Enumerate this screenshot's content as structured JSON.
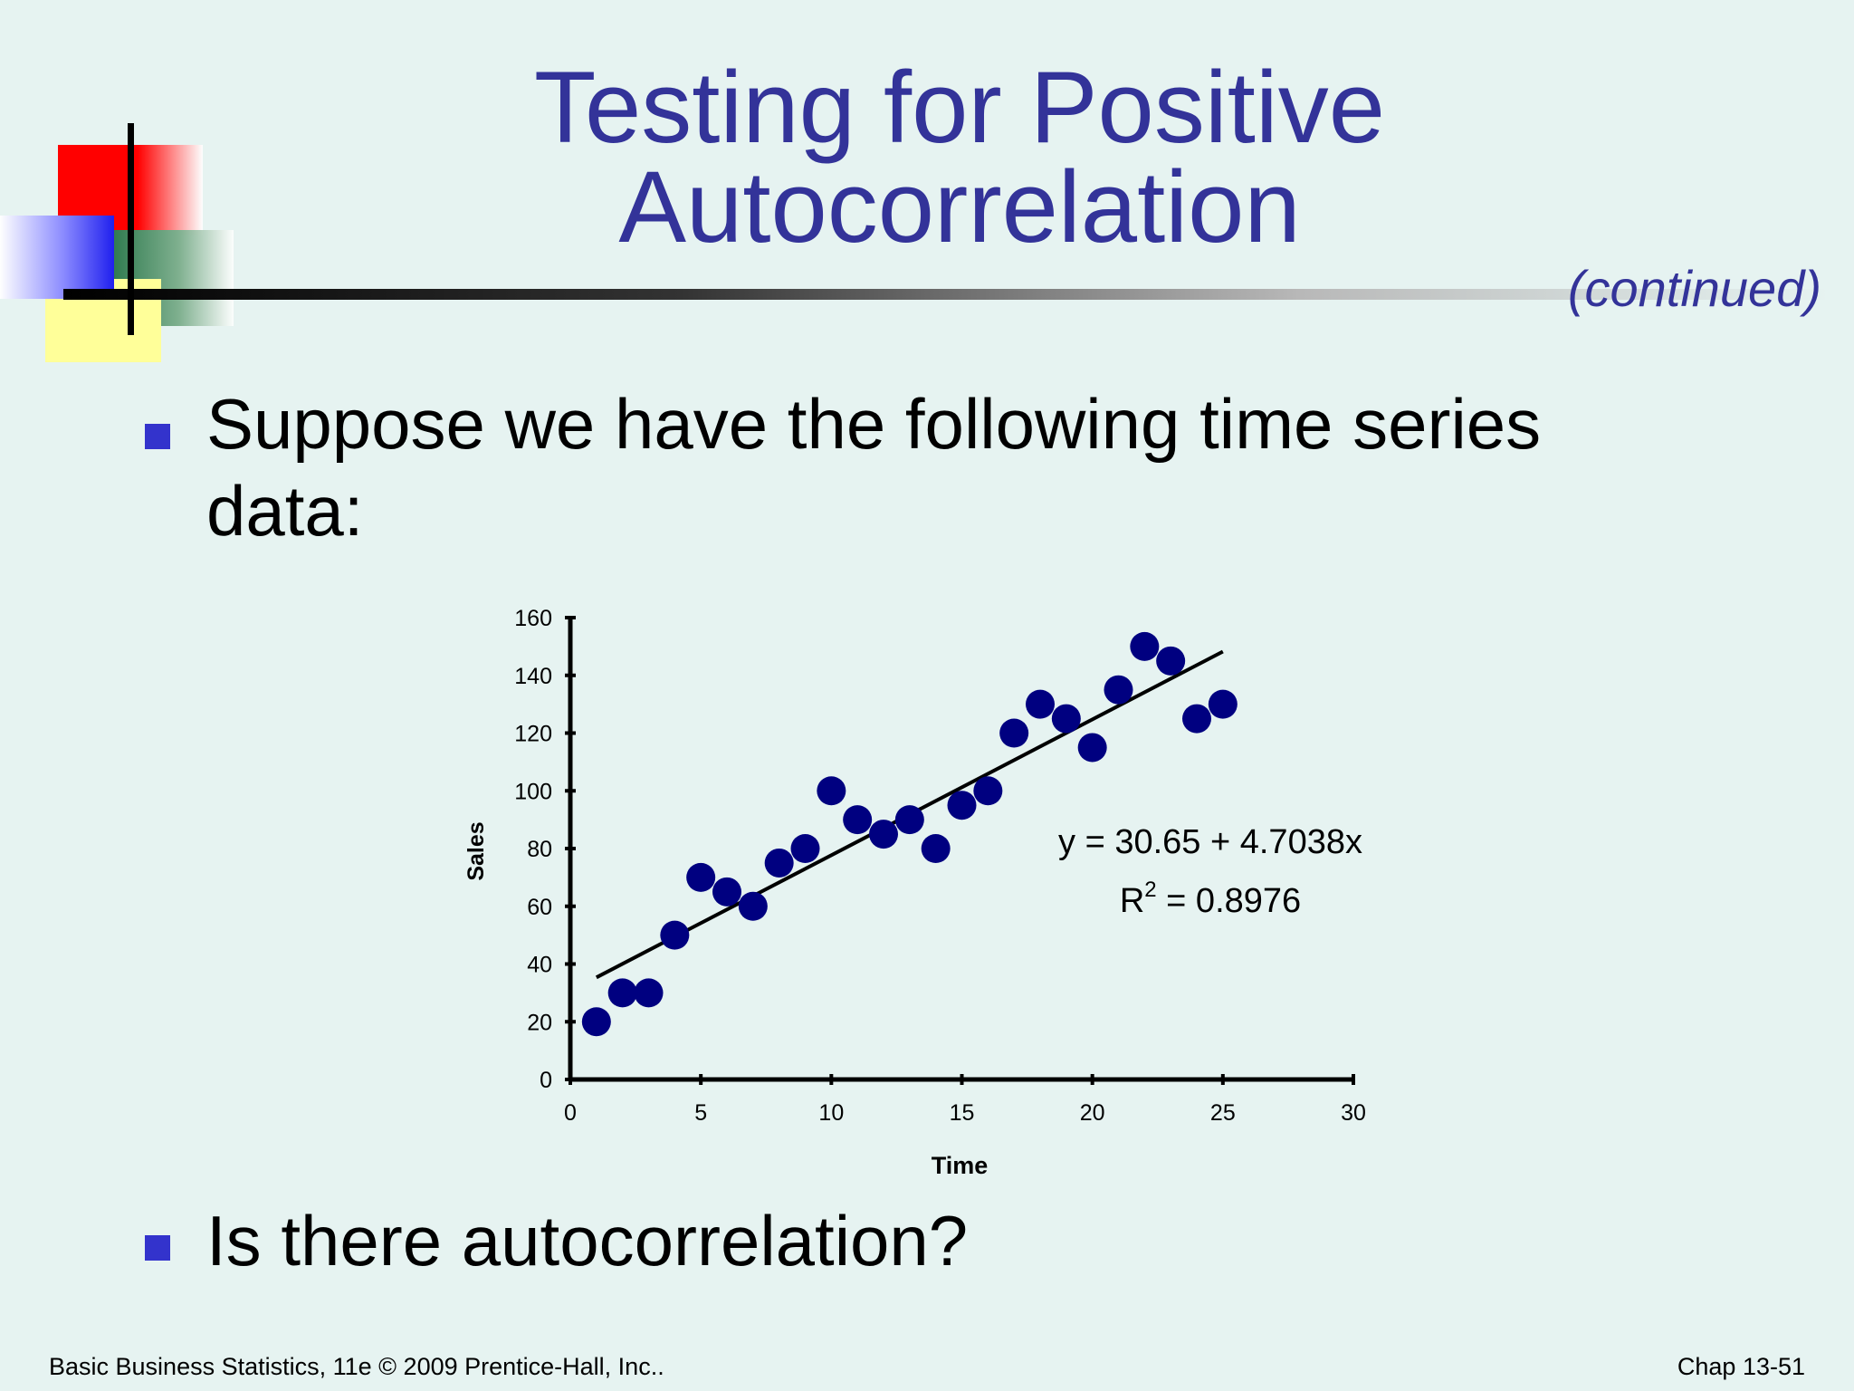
{
  "slide": {
    "title_line1": "Testing for Positive",
    "title_line2": "Autocorrelation",
    "subtitle": "(continued)",
    "bullets": [
      {
        "text_line1": "Suppose we have the following time series",
        "text_line2": "data:"
      },
      {
        "text": "Is there autocorrelation?"
      }
    ],
    "footer_left": "Basic Business Statistics, 11e © 2009 Prentice-Hall, Inc..",
    "footer_right": "Chap 13-51"
  },
  "colors": {
    "title": "#333399",
    "bullet": "#3333cc",
    "points": "#000080",
    "background": "#e6f3f1"
  },
  "chart_data": {
    "type": "scatter",
    "xlabel": "Time",
    "ylabel": "Sales",
    "xlim": [
      0,
      30
    ],
    "ylim": [
      0,
      160
    ],
    "x_ticks": [
      "0",
      "5",
      "10",
      "15",
      "20",
      "25",
      "30"
    ],
    "y_ticks": [
      "0",
      "20",
      "40",
      "60",
      "80",
      "100",
      "120",
      "140",
      "160"
    ],
    "grid": false,
    "legend": "none",
    "series": [
      {
        "x": [
          1,
          2,
          3,
          4,
          5,
          6,
          7,
          8,
          9,
          10,
          11,
          12,
          13,
          14,
          15,
          16,
          17,
          18,
          19,
          20,
          21,
          22,
          23,
          24,
          25
        ],
        "y": [
          20,
          30,
          30,
          50,
          70,
          65,
          60,
          75,
          80,
          100,
          90,
          85,
          90,
          80,
          95,
          100,
          120,
          130,
          125,
          115,
          135,
          150,
          145,
          125,
          130
        ]
      }
    ],
    "trendline": {
      "intercept": 30.65,
      "slope": 4.7038,
      "x_range": [
        1,
        25
      ]
    },
    "annotations": {
      "equation": "y = 30.65 + 4.7038x",
      "r2_prefix": "R",
      "r2_superscript": "2",
      "r2_value": " = 0.8976"
    }
  }
}
